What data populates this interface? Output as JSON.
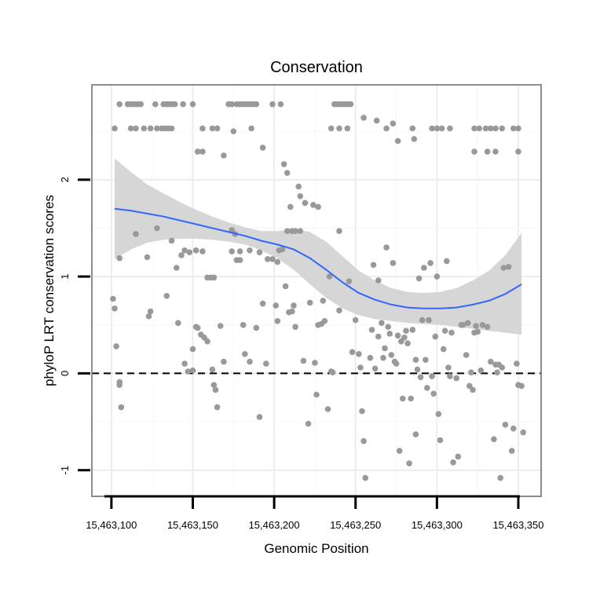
{
  "chart_data": {
    "type": "scatter",
    "title": "Conservation",
    "xlabel": "Genomic Position",
    "ylabel": "phyloP LRT conservation scores",
    "xlim": [
      15463088,
      15463364
    ],
    "ylim": [
      -1.27,
      2.98
    ],
    "x_ticks": [
      15463100,
      15463150,
      15463200,
      15463250,
      15463300,
      15463350
    ],
    "x_tick_labels": [
      "15,463,100",
      "15,463,150",
      "15,463,200",
      "15,463,250",
      "15,463,300",
      "15,463,350"
    ],
    "y_ticks": [
      -1,
      0,
      1,
      2
    ],
    "y_tick_labels": [
      "-1",
      "0",
      "1",
      "2"
    ],
    "reference_line": {
      "y": 0,
      "style": "dashed"
    },
    "grid": true,
    "point_color": "#999999",
    "smooth_color": "#3366FF",
    "ribbon_color": "#d6d6d6",
    "points": [
      [
        15463102,
        2.53
      ],
      [
        15463105,
        2.78
      ],
      [
        15463110,
        2.78
      ],
      [
        15463112,
        2.78
      ],
      [
        15463114,
        2.78
      ],
      [
        15463116,
        2.78
      ],
      [
        15463118,
        2.78
      ],
      [
        15463112,
        2.53
      ],
      [
        15463115,
        2.53
      ],
      [
        15463120,
        2.53
      ],
      [
        15463124,
        2.53
      ],
      [
        15463128,
        2.53
      ],
      [
        15463131,
        2.53
      ],
      [
        15463133,
        2.53
      ],
      [
        15463135,
        2.53
      ],
      [
        15463137,
        2.53
      ],
      [
        15463127,
        2.78
      ],
      [
        15463132,
        2.78
      ],
      [
        15463134,
        2.78
      ],
      [
        15463135,
        2.78
      ],
      [
        15463137,
        2.78
      ],
      [
        15463139,
        2.78
      ],
      [
        15463144,
        2.78
      ],
      [
        15463150,
        2.78
      ],
      [
        15463156,
        2.53
      ],
      [
        15463162,
        2.53
      ],
      [
        15463165,
        2.53
      ],
      [
        15463172,
        2.78
      ],
      [
        15463174,
        2.78
      ],
      [
        15463177,
        2.78
      ],
      [
        15463179,
        2.78
      ],
      [
        15463181,
        2.78
      ],
      [
        15463183,
        2.78
      ],
      [
        15463185,
        2.78
      ],
      [
        15463187,
        2.78
      ],
      [
        15463189,
        2.78
      ],
      [
        15463186,
        2.53
      ],
      [
        15463199,
        2.78
      ],
      [
        15463204,
        2.78
      ],
      [
        15463237,
        2.78
      ],
      [
        15463239,
        2.78
      ],
      [
        15463241,
        2.78
      ],
      [
        15463243,
        2.78
      ],
      [
        15463245,
        2.78
      ],
      [
        15463247,
        2.78
      ],
      [
        15463235,
        2.53
      ],
      [
        15463240,
        2.53
      ],
      [
        15463245,
        2.53
      ],
      [
        15463269,
        2.53
      ],
      [
        15463285,
        2.53
      ],
      [
        15463297,
        2.53
      ],
      [
        15463300,
        2.53
      ],
      [
        15463303,
        2.53
      ],
      [
        15463308,
        2.53
      ],
      [
        15463323,
        2.53
      ],
      [
        15463326,
        2.53
      ],
      [
        15463330,
        2.53
      ],
      [
        15463333,
        2.53
      ],
      [
        15463336,
        2.53
      ],
      [
        15463340,
        2.53
      ],
      [
        15463347,
        2.53
      ],
      [
        15463350,
        2.53
      ],
      [
        15463323,
        2.29
      ],
      [
        15463331,
        2.29
      ],
      [
        15463336,
        2.29
      ],
      [
        15463350,
        2.29
      ],
      [
        15463153,
        2.29
      ],
      [
        15463156,
        2.29
      ],
      [
        15463169,
        2.25
      ],
      [
        15463175,
        2.5
      ],
      [
        15463193,
        2.33
      ],
      [
        15463255,
        2.64
      ],
      [
        15463263,
        2.61
      ],
      [
        15463273,
        2.58
      ],
      [
        15463276,
        2.4
      ],
      [
        15463286,
        2.42
      ],
      [
        15463206,
        2.16
      ],
      [
        15463208,
        2.07
      ],
      [
        15463215,
        1.93
      ],
      [
        15463216,
        1.83
      ],
      [
        15463219,
        1.76
      ],
      [
        15463224,
        1.74
      ],
      [
        15463227,
        1.72
      ],
      [
        15463210,
        1.72
      ],
      [
        15463240,
        1.47
      ],
      [
        15463208,
        1.47
      ],
      [
        15463211,
        1.47
      ],
      [
        15463213,
        1.47
      ],
      [
        15463216,
        1.47
      ],
      [
        15463174,
        1.48
      ],
      [
        15463176,
        1.44
      ],
      [
        15463174,
        1.26
      ],
      [
        15463179,
        1.26
      ],
      [
        15463185,
        1.27
      ],
      [
        15463191,
        1.25
      ],
      [
        15463177,
        1.17
      ],
      [
        15463179,
        1.17
      ],
      [
        15463196,
        1.18
      ],
      [
        15463199,
        1.18
      ],
      [
        15463202,
        1.15
      ],
      [
        15463205,
        1.28
      ],
      [
        15463203,
        1.27
      ],
      [
        15463105,
        1.19
      ],
      [
        15463115,
        1.44
      ],
      [
        15463122,
        1.2
      ],
      [
        15463128,
        1.5
      ],
      [
        15463137,
        1.37
      ],
      [
        15463140,
        1.09
      ],
      [
        15463143,
        1.22
      ],
      [
        15463145,
        1.27
      ],
      [
        15463148,
        1.25
      ],
      [
        15463152,
        1.27
      ],
      [
        15463156,
        1.26
      ],
      [
        15463159,
        0.99
      ],
      [
        15463161,
        0.99
      ],
      [
        15463163,
        0.99
      ],
      [
        15463134,
        0.8
      ],
      [
        15463101,
        0.77
      ],
      [
        15463102,
        0.67
      ],
      [
        15463103,
        0.28
      ],
      [
        15463123,
        0.59
      ],
      [
        15463124,
        0.64
      ],
      [
        15463105,
        -0.09
      ],
      [
        15463106,
        -0.35
      ],
      [
        15463105,
        -0.12
      ],
      [
        15463141,
        0.52
      ],
      [
        15463145,
        0.1
      ],
      [
        15463147,
        0.02
      ],
      [
        15463150,
        0.03
      ],
      [
        15463150,
        0.25
      ],
      [
        15463152,
        0.48
      ],
      [
        15463153,
        0.47
      ],
      [
        15463155,
        0.4
      ],
      [
        15463157,
        0.37
      ],
      [
        15463159,
        0.33
      ],
      [
        15463162,
        0.04
      ],
      [
        15463163,
        -0.12
      ],
      [
        15463164,
        -0.17
      ],
      [
        15463165,
        -0.35
      ],
      [
        15463167,
        0.49
      ],
      [
        15463169,
        0.12
      ],
      [
        15463181,
        0.5
      ],
      [
        15463182,
        0.2
      ],
      [
        15463185,
        0.12
      ],
      [
        15463189,
        0.47
      ],
      [
        15463191,
        -0.45
      ],
      [
        15463193,
        0.72
      ],
      [
        15463195,
        0.1
      ],
      [
        15463201,
        0.7
      ],
      [
        15463202,
        0.54
      ],
      [
        15463207,
        0.9
      ],
      [
        15463209,
        0.63
      ],
      [
        15463211,
        0.64
      ],
      [
        15463212,
        0.7
      ],
      [
        15463213,
        0.48
      ],
      [
        15463218,
        0.13
      ],
      [
        15463221,
        -0.52
      ],
      [
        15463222,
        0.73
      ],
      [
        15463225,
        0.11
      ],
      [
        15463226,
        -0.22
      ],
      [
        15463227,
        0.5
      ],
      [
        15463229,
        0.51
      ],
      [
        15463230,
        0.75
      ],
      [
        15463231,
        0.54
      ],
      [
        15463233,
        -0.37
      ],
      [
        15463234,
        1.0
      ],
      [
        15463235,
        0.02
      ],
      [
        15463236,
        0.01
      ],
      [
        15463240,
        0.65
      ],
      [
        15463246,
        0.95
      ],
      [
        15463248,
        0.22
      ],
      [
        15463250,
        0.55
      ],
      [
        15463252,
        0.2
      ],
      [
        15463253,
        0.06
      ],
      [
        15463254,
        -0.39
      ],
      [
        15463255,
        -0.7
      ],
      [
        15463256,
        -1.08
      ],
      [
        15463259,
        0.16
      ],
      [
        15463260,
        0.45
      ],
      [
        15463261,
        1.12
      ],
      [
        15463262,
        0.05
      ],
      [
        15463264,
        0.38
      ],
      [
        15463264,
        0.96
      ],
      [
        15463266,
        0.52
      ],
      [
        15463267,
        0.16
      ],
      [
        15463268,
        0.26
      ],
      [
        15463269,
        1.3
      ],
      [
        15463270,
        0.48
      ],
      [
        15463271,
        0.41
      ],
      [
        15463272,
        0.19
      ],
      [
        15463273,
        1.14
      ],
      [
        15463274,
        0.12
      ],
      [
        15463275,
        0.1
      ],
      [
        15463276,
        0.39
      ],
      [
        15463277,
        -0.8
      ],
      [
        15463278,
        0.33
      ],
      [
        15463279,
        -0.26
      ],
      [
        15463280,
        0.37
      ],
      [
        15463281,
        0.44
      ],
      [
        15463282,
        0.31
      ],
      [
        15463283,
        -0.93
      ],
      [
        15463284,
        -0.26
      ],
      [
        15463285,
        0.45
      ],
      [
        15463287,
        0.14
      ],
      [
        15463287,
        -0.63
      ],
      [
        15463288,
        0.04
      ],
      [
        15463289,
        0.98
      ],
      [
        15463290,
        -0.04
      ],
      [
        15463291,
        0.55
      ],
      [
        15463292,
        1.09
      ],
      [
        15463293,
        0.14
      ],
      [
        15463294,
        -0.15
      ],
      [
        15463295,
        0.55
      ],
      [
        15463296,
        1.14
      ],
      [
        15463297,
        -0.03
      ],
      [
        15463298,
        -0.21
      ],
      [
        15463299,
        0.38
      ],
      [
        15463300,
        1.0
      ],
      [
        15463301,
        -0.42
      ],
      [
        15463302,
        -0.69
      ],
      [
        15463304,
        0.25
      ],
      [
        15463305,
        0.44
      ],
      [
        15463306,
        1.16
      ],
      [
        15463307,
        0.06
      ],
      [
        15463308,
        -0.03
      ],
      [
        15463309,
        0.42
      ],
      [
        15463310,
        -0.92
      ],
      [
        15463312,
        -0.05
      ],
      [
        15463313,
        -0.86
      ],
      [
        15463315,
        0.5
      ],
      [
        15463316,
        0.5
      ],
      [
        15463318,
        0.19
      ],
      [
        15463319,
        0.52
      ],
      [
        15463320,
        -0.13
      ],
      [
        15463321,
        0.01
      ],
      [
        15463322,
        -0.17
      ],
      [
        15463323,
        0.42
      ],
      [
        15463324,
        0.49
      ],
      [
        15463325,
        0.43
      ],
      [
        15463327,
        0.03
      ],
      [
        15463328,
        0.5
      ],
      [
        15463331,
        0.48
      ],
      [
        15463333,
        0.12
      ],
      [
        15463335,
        -0.68
      ],
      [
        15463336,
        0.09
      ],
      [
        15463337,
        0.01
      ],
      [
        15463338,
        0.09
      ],
      [
        15463339,
        -1.08
      ],
      [
        15463340,
        0.06
      ],
      [
        15463341,
        1.09
      ],
      [
        15463342,
        -0.53
      ],
      [
        15463344,
        1.1
      ],
      [
        15463346,
        -0.8
      ],
      [
        15463347,
        -0.57
      ],
      [
        15463349,
        0.1
      ],
      [
        15463350,
        -0.12
      ],
      [
        15463352,
        -0.13
      ],
      [
        15463353,
        -0.61
      ]
    ],
    "smooth": {
      "x": [
        15463102,
        15463112,
        15463122,
        15463132,
        15463142,
        15463152,
        15463162,
        15463172,
        15463182,
        15463192,
        15463202,
        15463212,
        15463222,
        15463232,
        15463242,
        15463252,
        15463262,
        15463272,
        15463282,
        15463292,
        15463302,
        15463312,
        15463322,
        15463332,
        15463342,
        15463352
      ],
      "y": [
        1.7,
        1.68,
        1.65,
        1.62,
        1.58,
        1.54,
        1.5,
        1.46,
        1.42,
        1.37,
        1.33,
        1.28,
        1.19,
        1.07,
        0.94,
        0.83,
        0.76,
        0.71,
        0.68,
        0.67,
        0.67,
        0.68,
        0.71,
        0.75,
        0.82,
        0.92
      ],
      "ymin": [
        1.18,
        1.28,
        1.35,
        1.38,
        1.39,
        1.39,
        1.38,
        1.36,
        1.33,
        1.27,
        1.19,
        1.07,
        0.92,
        0.78,
        0.67,
        0.6,
        0.56,
        0.54,
        0.52,
        0.51,
        0.5,
        0.48,
        0.46,
        0.44,
        0.42,
        0.4
      ],
      "ymax": [
        2.22,
        2.08,
        1.95,
        1.86,
        1.77,
        1.69,
        1.62,
        1.56,
        1.51,
        1.47,
        1.47,
        1.49,
        1.46,
        1.36,
        1.21,
        1.06,
        0.96,
        0.88,
        0.84,
        0.83,
        0.84,
        0.88,
        0.96,
        1.06,
        1.22,
        1.45
      ]
    }
  }
}
